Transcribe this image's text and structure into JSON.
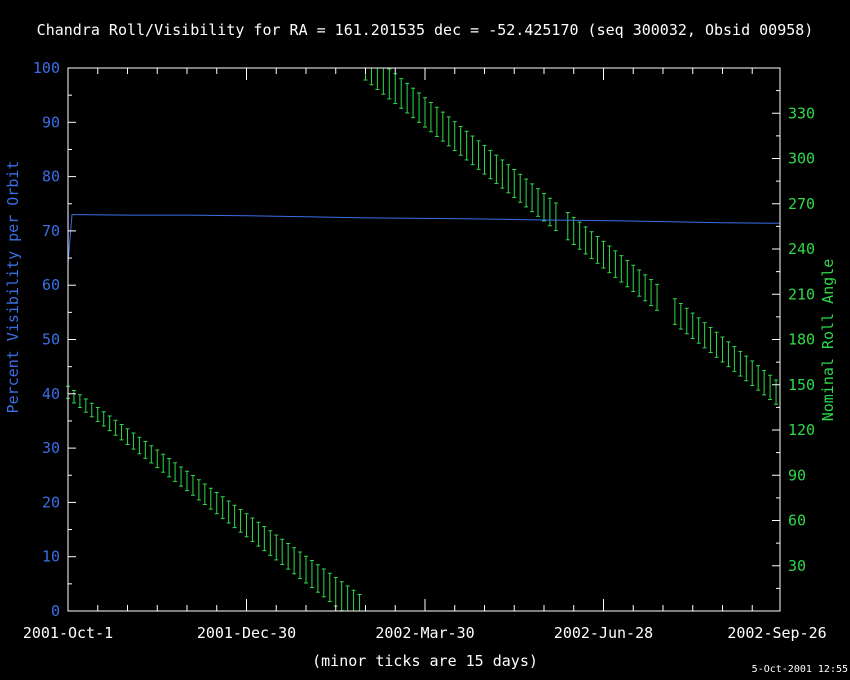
{
  "chart_data": {
    "type": "line",
    "title": "Chandra Roll/Visibility for RA = 161.201535 dec = -52.425170 (seq 300032, Obsid 00958)",
    "xlabel": "(minor ticks are 15 days)",
    "ylabel_left": "Percent Visibility per Orbit",
    "ylabel_right": "Nominal Roll Angle",
    "timestamp": "5-Oct-2001 12:55",
    "x_range_days": [
      0,
      359
    ],
    "x_major_ticks": [
      {
        "day": 0,
        "label": "2001-Oct-1"
      },
      {
        "day": 90,
        "label": "2001-Dec-30"
      },
      {
        "day": 180,
        "label": "2002-Mar-30"
      },
      {
        "day": 270,
        "label": "2002-Jun-28"
      },
      {
        "day": 360,
        "label": "2002-Sep-26"
      }
    ],
    "x_minor_tick_spacing_days": 15,
    "ylim_left": [
      0,
      100
    ],
    "ylim_right": [
      0,
      360
    ],
    "left_ticks": [
      0,
      10,
      20,
      30,
      40,
      50,
      60,
      70,
      80,
      90,
      100
    ],
    "right_ticks": [
      30,
      60,
      90,
      120,
      150,
      180,
      210,
      240,
      270,
      300,
      330
    ],
    "colors": {
      "background": "#000000",
      "axes": "#ffffff",
      "visibility": "#3a6ee8",
      "roll": "#2fd84a",
      "title": "#ffffff"
    },
    "visibility_series": {
      "name": "Percent Visibility per Orbit",
      "days": [
        0,
        2,
        5,
        30,
        60,
        90,
        120,
        150,
        180,
        210,
        240,
        270,
        300,
        330,
        359
      ],
      "values": [
        64,
        73,
        73,
        72.9,
        72.9,
        72.8,
        72.6,
        72.4,
        72.3,
        72.2,
        72.0,
        71.9,
        71.7,
        71.5,
        71.4
      ]
    },
    "roll_series": {
      "name": "Nominal Roll Angle",
      "segments": [
        {
          "start_day": 0,
          "end_day": 148,
          "step_days": 3,
          "roll_start": 145,
          "roll_end": 0,
          "half_range_start": 4,
          "half_range_end": 10
        },
        {
          "start_day": 150,
          "end_day": 359,
          "step_days": 3,
          "roll_start": 362,
          "roll_end": 143,
          "half_range_start": 10,
          "half_range_end": 8
        }
      ],
      "gaps": [
        {
          "start_day": 247,
          "end_day": 251
        },
        {
          "start_day": 300,
          "end_day": 305
        }
      ]
    }
  }
}
